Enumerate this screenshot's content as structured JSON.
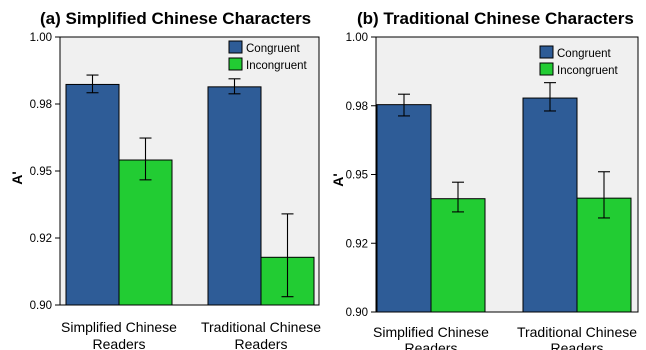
{
  "chart_data": [
    {
      "type": "bar",
      "title": "(a) Simplified Chinese Characters",
      "ylabel": "A'",
      "xlabel": "",
      "categories": [
        "Simplified Chinese Readers",
        "Traditional Chinese Readers"
      ],
      "category_lines": [
        [
          "Simplified Chinese",
          "Readers"
        ],
        [
          "Traditional Chinese",
          "Readers"
        ]
      ],
      "series": [
        {
          "name": "Congruent",
          "color": "#2e5c97",
          "values": [
            0.9823,
            0.9814
          ],
          "error_low": [
            0.9792,
            0.9788
          ],
          "error_high": [
            0.9858,
            0.9844
          ]
        },
        {
          "name": "Incongruent",
          "color": "#22cc33",
          "values": [
            0.9541,
            0.9178
          ],
          "error_low": [
            0.9467,
            0.9031
          ],
          "error_high": [
            0.9623,
            0.934
          ]
        }
      ],
      "ylim": [
        0.9,
        1.0
      ],
      "yticks": [
        "0.90",
        "0.92",
        "0.95",
        "0.98",
        "1.00"
      ],
      "ytick_values": [
        0.9,
        0.925,
        0.95,
        0.975,
        1.0
      ],
      "legend": "top-right",
      "grid": false
    },
    {
      "type": "bar",
      "title": "(b) Traditional Chinese Characters",
      "ylabel": "A'",
      "xlabel": "",
      "categories": [
        "Simplified Chinese Readers",
        "Traditional Chinese Readers"
      ],
      "category_lines": [
        [
          "Simplified Chinese",
          "Readers"
        ],
        [
          "Traditional Chinese",
          "Readers"
        ]
      ],
      "series": [
        {
          "name": "Congruent",
          "color": "#2e5c97",
          "values": [
            0.9754,
            0.9778
          ],
          "error_low": [
            0.9713,
            0.9731
          ],
          "error_high": [
            0.9792,
            0.9834
          ]
        },
        {
          "name": "Incongruent",
          "color": "#22cc33",
          "values": [
            0.9412,
            0.9414
          ],
          "error_low": [
            0.9364,
            0.9342
          ],
          "error_high": [
            0.9472,
            0.951
          ]
        }
      ],
      "ylim": [
        0.9,
        1.0
      ],
      "yticks": [
        "0.90",
        "0.92",
        "0.95",
        "0.98",
        "1.00"
      ],
      "ytick_values": [
        0.9,
        0.925,
        0.95,
        0.975,
        1.0
      ],
      "legend": "top-right",
      "grid": false
    }
  ]
}
